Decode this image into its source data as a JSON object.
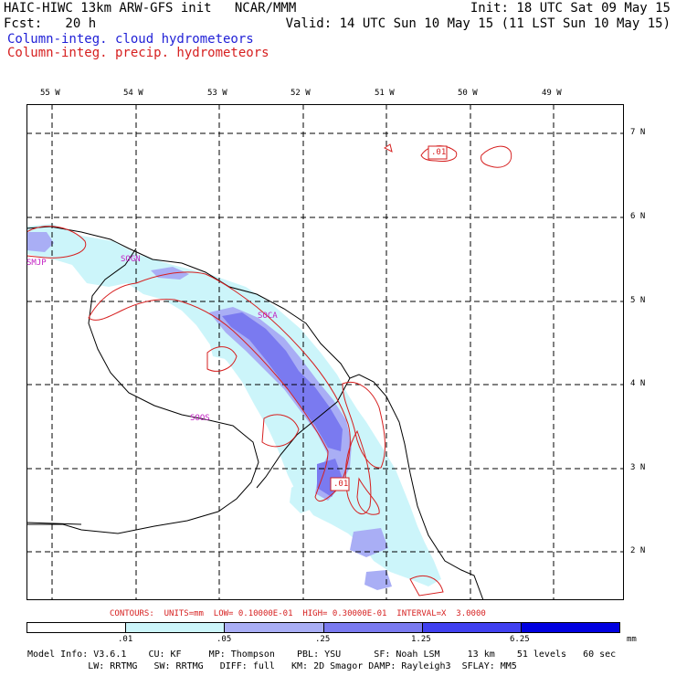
{
  "header": {
    "line1_left": "HAIC-HIWC 13km ARW-GFS init   NCAR/MMM",
    "line1_right": "Init: 18 UTC Sat 09 May 15",
    "line2_left": "Fcst:   20 h",
    "line2_right": "Valid: 14 UTC Sun 10 May 15 (11 LST Sun 10 May 15)",
    "legend_cloud": "Column-integ. cloud hydrometeors",
    "legend_precip": "Column-integ. precip. hydrometeors"
  },
  "colors": {
    "cloud_series": "#1f1fd6",
    "precip_series": "#d61f1f",
    "fill_level_1": "#ccf5fa",
    "fill_level_2": "#a9aef5",
    "fill_level_3": "#7a7af0",
    "fill_level_4": "#4040f0",
    "fill_level_5": "#0000e0",
    "station_labels": "#c21fc2"
  },
  "map": {
    "longitude_labels": [
      "55 W",
      "54 W",
      "53 W",
      "52 W",
      "51 W",
      "50 W",
      "49 W"
    ],
    "latitude_labels": [
      "7 N",
      "6 N",
      "5 N",
      "4 N",
      "3 N",
      "2 N"
    ],
    "stations": [
      "SMJP",
      "SOGN",
      "SOCA",
      "SOOS"
    ],
    "contour_labels": [
      ".01",
      ".01"
    ]
  },
  "contour_info": "CONTOURS:  UNITS=mm  LOW= 0.10000E-01  HIGH= 0.30000E-01  INTERVAL=X  3.0000",
  "colorbar": {
    "ticks": [
      ".01",
      ".05",
      ".25",
      "1.25",
      "6.25"
    ],
    "unit": "mm"
  },
  "footer": {
    "line1": "Model Info: V3.6.1    CU: KF     MP: Thompson    PBL: YSU      SF: Noah LSM     13 km    51 levels   60 sec",
    "line2": "           LW: RRTMG   SW: RRTMG   DIFF: full   KM: 2D Smagor DAMP: Rayleigh3  SFLAY: MM5"
  }
}
